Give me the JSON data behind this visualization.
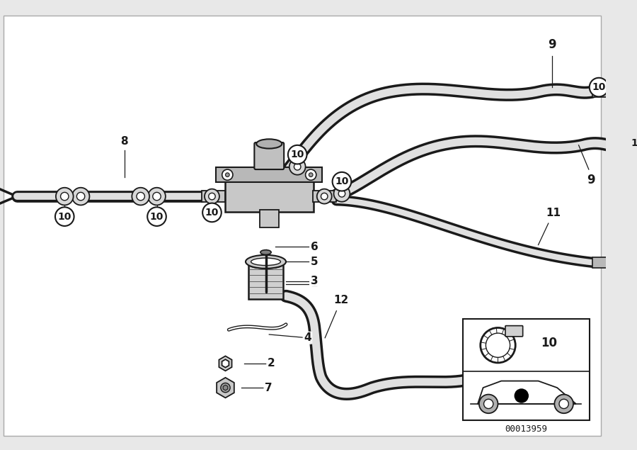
{
  "bg_color": "#e8e8e8",
  "line_color": "#1a1a1a",
  "part_number": "00013959",
  "fig_width": 9.0,
  "fig_height": 6.35,
  "dpi": 100
}
